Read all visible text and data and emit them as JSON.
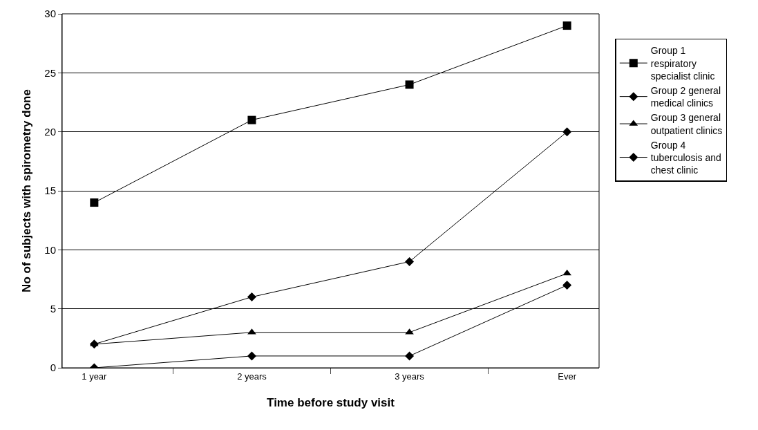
{
  "chart_data": {
    "type": "line",
    "xlabel": "Time before study visit",
    "ylabel": "No of subjects with spirometry done",
    "categories": [
      "1 year",
      "2 years",
      "3 years",
      "Ever"
    ],
    "ylim": [
      0,
      30
    ],
    "yticks": [
      0,
      5,
      10,
      15,
      20,
      25,
      30
    ],
    "grid": "y",
    "legend": "right",
    "line_style": "solid",
    "series": [
      {
        "name": "Group 1 respiratory specialist clinic",
        "color": "#000000",
        "marker": "square",
        "values": [
          14,
          21,
          24,
          29
        ]
      },
      {
        "name": "Group 2 general medical clinics",
        "color": "#000000",
        "marker": "diamond",
        "values": [
          2,
          6,
          9,
          20
        ]
      },
      {
        "name": "Group 3 general outpatient clinics",
        "color": "#000000",
        "marker": "triangle",
        "values": [
          2,
          3,
          3,
          8
        ]
      },
      {
        "name": "Group 4 tuberculosis and chest clinic",
        "color": "#000000",
        "marker": "diamond",
        "values": [
          0,
          1,
          1,
          7
        ]
      }
    ]
  }
}
